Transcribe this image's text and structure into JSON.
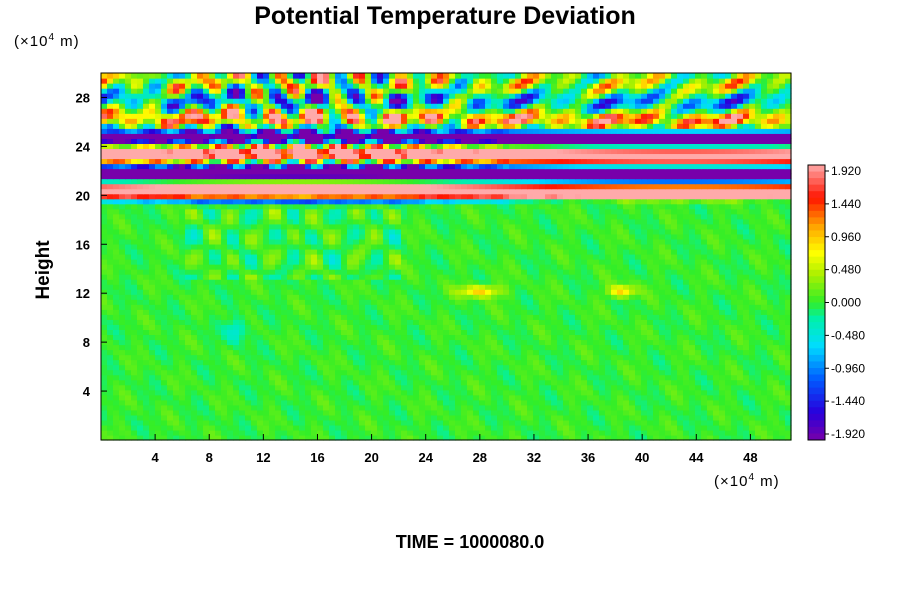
{
  "chart_data": {
    "type": "heatmap",
    "title": "Potential Temperature Deviation",
    "ylabel": "Height",
    "y_unit": "(×10⁴ m)",
    "x_unit": "(×10⁴ m)",
    "x_ticks": [
      "4",
      "8",
      "12",
      "16",
      "20",
      "24",
      "28",
      "32",
      "36",
      "40",
      "44",
      "48"
    ],
    "y_ticks": [
      "4",
      "8",
      "12",
      "16",
      "20",
      "24",
      "28"
    ],
    "xlim": [
      0,
      51
    ],
    "ylim": [
      0,
      30
    ],
    "colorbar": {
      "min": -1.92,
      "max": 1.92,
      "labels": [
        "1.920",
        "1.440",
        "0.960",
        "0.480",
        "0.000",
        "-0.480",
        "-0.960",
        "-1.440",
        "-1.920"
      ]
    },
    "annotation": "TIME = 1000080.0",
    "colors": {
      "positive_max": "#ffaaaa",
      "negative_max": "#7700aa",
      "zero": "#33ee22"
    }
  }
}
